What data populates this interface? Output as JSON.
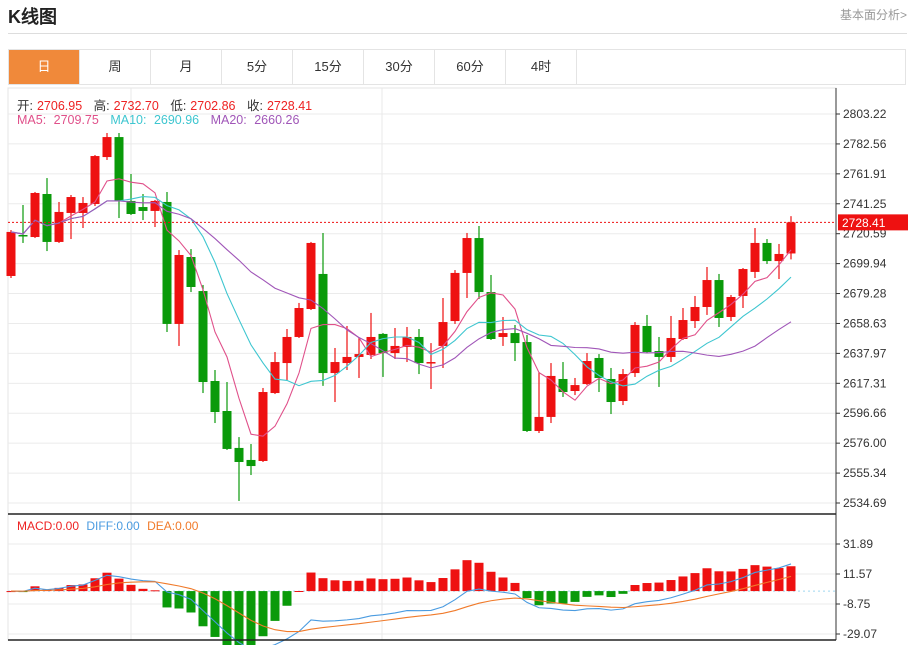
{
  "header": {
    "title": "K线图",
    "fundamental_link": "基本面分析>"
  },
  "tabs": [
    {
      "label": "日",
      "active": true
    },
    {
      "label": "周"
    },
    {
      "label": "月"
    },
    {
      "label": "5分"
    },
    {
      "label": "15分"
    },
    {
      "label": "30分"
    },
    {
      "label": "60分"
    },
    {
      "label": "4时"
    }
  ],
  "info": {
    "open_label": "开:",
    "open": "2706.95",
    "high_label": "高:",
    "high": "2732.70",
    "low_label": "低:",
    "low": "2702.86",
    "close_label": "收:",
    "close": "2728.41",
    "ma5_label": "MA5: ",
    "ma5": "2709.75",
    "ma10_label": "MA10: ",
    "ma10": "2690.96",
    "ma20_label": "MA20: ",
    "ma20": "2660.26"
  },
  "macd_info": {
    "macd": "MACD:0.00",
    "diff": "DIFF:0.00",
    "dea": "DEA:0.00"
  },
  "colors": {
    "up": "#ee1111",
    "down": "#0a9a0a",
    "ma5": "#e0508a",
    "ma10": "#3ec6d0",
    "ma20": "#a056b8",
    "diff": "#4a9be0",
    "dea": "#f07a2a",
    "accent": "#f0893a"
  },
  "chart_data": [
    {
      "type": "candlestick",
      "price_axis_ticks": [
        "2803.22",
        "2782.56",
        "2761.91",
        "2741.25",
        "2720.59",
        "2699.94",
        "2679.28",
        "2658.63",
        "2637.97",
        "2617.31",
        "2596.66",
        "2576.00",
        "2555.34",
        "2534.69"
      ],
      "ylim": [
        2534.69,
        2803.22
      ],
      "last_price": "2728.41",
      "grid": true,
      "ohlc": [
        [
          2691.4,
          2723.1,
          2690.0,
          2721.8
        ],
        [
          2719.7,
          2740.4,
          2714.2,
          2719.0
        ],
        [
          2718.3,
          2749.4,
          2717.6,
          2748.7
        ],
        [
          2748.0,
          2759.0,
          2708.6,
          2714.9
        ],
        [
          2714.9,
          2742.5,
          2714.2,
          2735.6
        ],
        [
          2734.9,
          2747.3,
          2716.9,
          2745.9
        ],
        [
          2734.9,
          2745.9,
          2724.5,
          2741.8
        ],
        [
          2741.1,
          2774.9,
          2739.7,
          2774.2
        ],
        [
          2773.5,
          2790.1,
          2771.5,
          2787.3
        ],
        [
          2787.3,
          2790.1,
          2731.4,
          2743.2
        ],
        [
          2743.2,
          2761.8,
          2733.5,
          2734.2
        ],
        [
          2739.0,
          2748.0,
          2730.0,
          2736.3
        ],
        [
          2736.3,
          2743.9,
          2725.2,
          2743.2
        ],
        [
          2742.5,
          2749.4,
          2652.7,
          2658.3
        ],
        [
          2658.3,
          2709.3,
          2643.1,
          2705.9
        ],
        [
          2704.5,
          2710.0,
          2680.3,
          2683.8
        ],
        [
          2681.0,
          2685.2,
          2610.6,
          2618.2
        ],
        [
          2618.9,
          2626.5,
          2589.9,
          2597.5
        ],
        [
          2598.2,
          2618.2,
          2571.3,
          2572.0
        ],
        [
          2572.7,
          2580.2,
          2536.1,
          2563.0
        ],
        [
          2564.4,
          2575.4,
          2554.0,
          2560.2
        ],
        [
          2563.7,
          2614.1,
          2563.0,
          2611.3
        ],
        [
          2610.6,
          2638.9,
          2609.9,
          2632.0
        ],
        [
          2631.3,
          2654.8,
          2619.6,
          2649.3
        ],
        [
          2649.3,
          2672.8,
          2648.6,
          2669.3
        ],
        [
          2668.6,
          2714.9,
          2667.9,
          2714.2
        ],
        [
          2692.8,
          2721.1,
          2615.5,
          2624.4
        ],
        [
          2624.4,
          2641.7,
          2604.4,
          2632.0
        ],
        [
          2631.3,
          2656.9,
          2626.5,
          2635.5
        ],
        [
          2635.5,
          2648.6,
          2621.0,
          2637.5
        ],
        [
          2636.9,
          2665.9,
          2634.1,
          2649.3
        ],
        [
          2651.4,
          2652.0,
          2621.7,
          2638.2
        ],
        [
          2638.2,
          2655.5,
          2634.1,
          2643.1
        ],
        [
          2642.4,
          2656.2,
          2632.0,
          2649.3
        ],
        [
          2649.3,
          2654.8,
          2623.7,
          2631.3
        ],
        [
          2631.3,
          2645.1,
          2613.4,
          2632.0
        ],
        [
          2643.1,
          2676.2,
          2627.9,
          2659.6
        ],
        [
          2660.3,
          2695.5,
          2658.3,
          2693.5
        ],
        [
          2693.5,
          2721.1,
          2676.2,
          2717.6
        ],
        [
          2717.6,
          2725.9,
          2675.5,
          2680.3
        ],
        [
          2680.3,
          2692.1,
          2647.2,
          2647.9
        ],
        [
          2649.3,
          2663.1,
          2643.1,
          2652.0
        ],
        [
          2652.0,
          2657.6,
          2632.7,
          2645.1
        ],
        [
          2645.8,
          2650.7,
          2583.7,
          2584.4
        ],
        [
          2584.4,
          2625.1,
          2583.0,
          2594.1
        ],
        [
          2594.1,
          2631.3,
          2589.9,
          2622.4
        ],
        [
          2620.3,
          2632.0,
          2607.9,
          2611.3
        ],
        [
          2612.0,
          2621.0,
          2609.2,
          2616.1
        ],
        [
          2616.8,
          2638.2,
          2616.1,
          2632.7
        ],
        [
          2634.8,
          2637.5,
          2611.3,
          2621.0
        ],
        [
          2620.3,
          2627.9,
          2596.1,
          2604.4
        ],
        [
          2605.1,
          2627.2,
          2602.3,
          2623.7
        ],
        [
          2624.4,
          2659.6,
          2621.7,
          2657.6
        ],
        [
          2656.9,
          2664.5,
          2638.2,
          2638.9
        ],
        [
          2639.6,
          2649.3,
          2614.8,
          2635.5
        ],
        [
          2635.5,
          2663.8,
          2632.0,
          2648.6
        ],
        [
          2647.9,
          2669.3,
          2647.2,
          2661.0
        ],
        [
          2660.3,
          2677.6,
          2655.5,
          2670.0
        ],
        [
          2670.0,
          2697.6,
          2664.5,
          2688.6
        ],
        [
          2688.6,
          2692.8,
          2656.2,
          2662.4
        ],
        [
          2663.1,
          2678.3,
          2660.3,
          2676.9
        ],
        [
          2677.6,
          2696.9,
          2669.3,
          2696.2
        ],
        [
          2694.2,
          2724.5,
          2690.0,
          2714.2
        ],
        [
          2714.2,
          2716.9,
          2699.7,
          2701.7
        ],
        [
          2701.7,
          2713.5,
          2689.3,
          2706.6
        ],
        [
          2706.95,
          2732.7,
          2702.86,
          2728.41
        ]
      ],
      "ohlc_order": [
        "open",
        "high",
        "low",
        "close"
      ],
      "series": [
        {
          "name": "MA5"
        },
        {
          "name": "MA10"
        },
        {
          "name": "MA20"
        }
      ]
    },
    {
      "type": "bar",
      "macd_axis_ticks": [
        "31.89",
        "11.57",
        "-8.75",
        "-29.07"
      ],
      "ylim": [
        -29.07,
        31.89
      ],
      "series": [
        {
          "name": "MACD"
        },
        {
          "name": "DIFF"
        },
        {
          "name": "DEA"
        }
      ]
    }
  ]
}
